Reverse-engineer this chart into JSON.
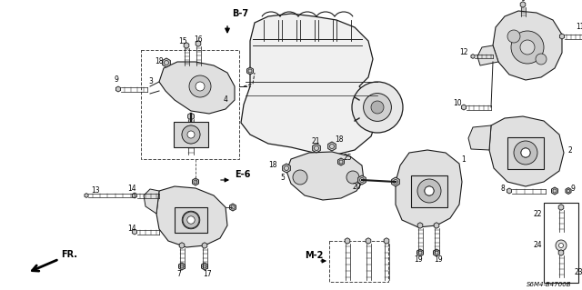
{
  "bg_color": "#ffffff",
  "line_color": "#1a1a1a",
  "dashed_color": "#444444",
  "label_color": "#000000",
  "diagram_id": "S6M4-B4700B",
  "figsize": [
    6.4,
    3.19
  ],
  "dpi": 100
}
